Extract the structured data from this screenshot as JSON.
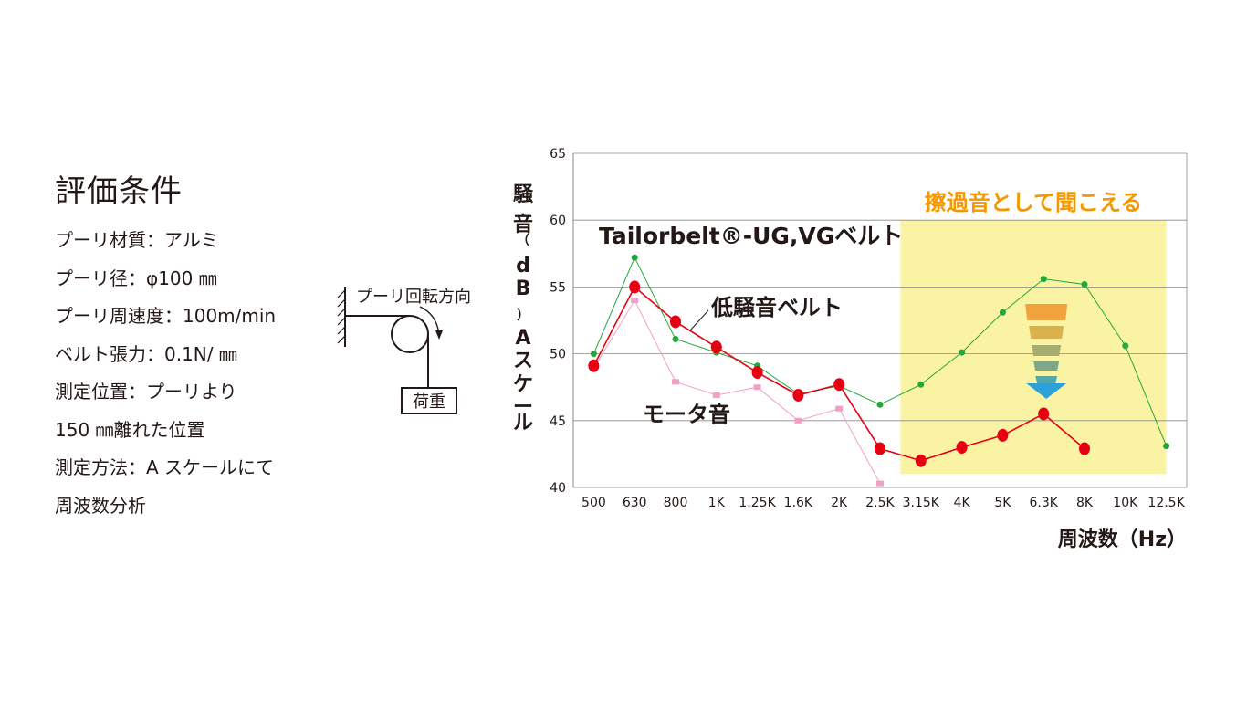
{
  "conditions": {
    "title": "評価条件",
    "lines": [
      "プーリ材質：アルミ",
      "プーリ径：φ100 ㎜",
      "プーリ周速度：100m/min",
      "ベルト張力：0.1N/ ㎜",
      "測定位置：プーリより",
      "150 ㎜離れた位置",
      "測定方法：A スケールにて",
      "周波数分析"
    ]
  },
  "diagram": {
    "rotation_label": "プーリ回転方向",
    "load_label": "荷重"
  },
  "chart_data": {
    "type": "line",
    "categories": [
      "500",
      "630",
      "800",
      "1K",
      "1.25K",
      "1.6K",
      "2K",
      "2.5K",
      "3.15K",
      "4K",
      "5K",
      "6.3K",
      "8K",
      "10K",
      "12.5K"
    ],
    "ylabel": "騒音（dB）Aスケール",
    "xlabel": "周波数（Hz）",
    "ylim": [
      40,
      65
    ],
    "yticks": [
      40,
      45,
      50,
      55,
      60,
      65
    ],
    "grid": true,
    "series": [
      {
        "name": "Tailorbelt®-UG,VGベルト",
        "color": "#22a83a",
        "values": [
          50,
          57.2,
          51.1,
          50.1,
          49.1,
          47.0,
          47.6,
          46.2,
          47.7,
          50.1,
          53.1,
          55.6,
          55.2,
          50.6,
          43.1
        ]
      },
      {
        "name": "低騒音ベルト",
        "color": "#e60012",
        "values": [
          49.1,
          55.0,
          52.4,
          50.5,
          48.6,
          46.9,
          47.7,
          42.9,
          42.0,
          43.0,
          43.9,
          45.5,
          42.9,
          null,
          null
        ]
      },
      {
        "name": "モータ音",
        "color": "#f29fc5",
        "values": [
          48.9,
          54.0,
          47.9,
          46.9,
          47.5,
          45.0,
          45.9,
          40.3,
          null,
          null,
          null,
          null,
          null,
          null,
          null
        ]
      }
    ],
    "highlight": {
      "label": "擦過音として聞こえる",
      "color": "#fbf3a4",
      "label_color": "#f39800",
      "x_from": "3.15K",
      "x_to": "12.5K",
      "y_from": 41,
      "y_to": 60
    }
  }
}
